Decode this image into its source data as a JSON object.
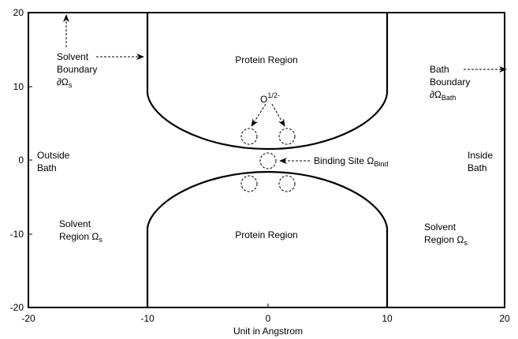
{
  "axes": {
    "x_ticks": [
      "-20",
      "-10",
      "0",
      "10",
      "20"
    ],
    "y_ticks": [
      "20",
      "10",
      "0",
      "-10",
      "-20"
    ],
    "xlabel": "Unit in Angstrom"
  },
  "labels": {
    "protein_top": "Protein Region",
    "protein_bottom": "Protein Region",
    "outside_bath_1": "Outside",
    "outside_bath_2": "Bath",
    "inside_bath_1": "Inside",
    "inside_bath_2": "Bath",
    "solvent_boundary_1": "Solvent",
    "solvent_boundary_2": "Boundary",
    "solvent_boundary_3": "∂Ω",
    "solvent_boundary_sub": "s",
    "bath_boundary_1": "Bath",
    "bath_boundary_2": "Boundary",
    "bath_boundary_3": "∂Ω",
    "bath_boundary_sub": "Bath",
    "solvent_left_1": "Solvent",
    "solvent_left_2": "Region Ω",
    "solvent_left_sub": "s",
    "solvent_right_1": "Solvent",
    "solvent_right_2": "Region Ω",
    "solvent_right_sub": "s",
    "binding_site": "Binding Site Ω",
    "binding_site_sub": "Bind",
    "oxygen": "O",
    "oxygen_sup": "1/2-"
  }
}
